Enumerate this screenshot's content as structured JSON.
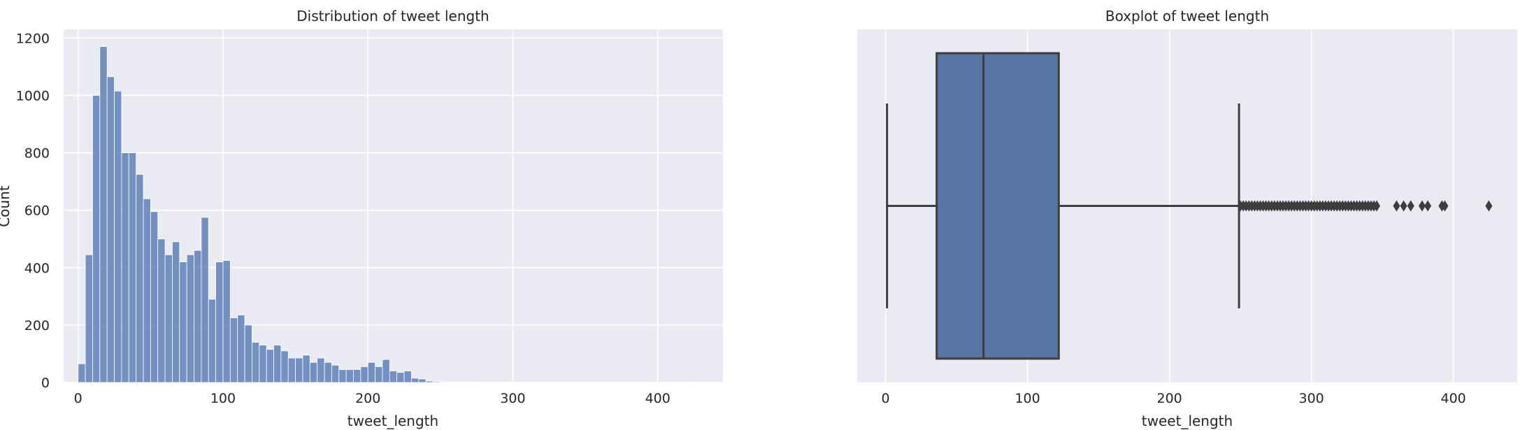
{
  "chart_data": [
    {
      "type": "bar",
      "title": "Distribution of tweet length",
      "xlabel": "tweet_length",
      "ylabel": "Count",
      "xlim": [
        -10,
        445
      ],
      "ylim": [
        0,
        1230
      ],
      "xticks": [
        0,
        100,
        200,
        300,
        400
      ],
      "yticks": [
        0,
        200,
        400,
        600,
        800,
        1000,
        1200
      ],
      "grid": true,
      "bin_width": 5,
      "bin_starts": [
        0,
        5,
        10,
        15,
        20,
        25,
        30,
        35,
        40,
        45,
        50,
        55,
        60,
        65,
        70,
        75,
        80,
        85,
        90,
        95,
        100,
        105,
        110,
        115,
        120,
        125,
        130,
        135,
        140,
        145,
        150,
        155,
        160,
        165,
        170,
        175,
        180,
        185,
        190,
        195,
        200,
        205,
        210,
        215,
        220,
        225,
        230,
        235,
        240,
        245,
        250,
        255,
        260,
        265,
        270,
        275,
        280,
        285,
        290,
        295,
        300,
        305,
        310,
        315,
        320,
        325,
        330,
        335,
        340,
        345,
        350,
        355,
        360,
        365,
        370,
        375,
        380,
        385,
        390,
        395,
        400,
        405,
        410,
        415,
        420
      ],
      "values": [
        65,
        445,
        1000,
        1170,
        1065,
        1015,
        800,
        800,
        725,
        640,
        595,
        500,
        445,
        490,
        420,
        445,
        460,
        575,
        290,
        420,
        425,
        225,
        235,
        200,
        140,
        130,
        115,
        130,
        110,
        85,
        85,
        95,
        70,
        85,
        70,
        60,
        45,
        45,
        45,
        55,
        70,
        55,
        80,
        40,
        35,
        40,
        15,
        12,
        5,
        3,
        2,
        2,
        1,
        1,
        1,
        0,
        0,
        0,
        0,
        0,
        0,
        0,
        0,
        0,
        0,
        0,
        0,
        0,
        0,
        0,
        0,
        0,
        0,
        0,
        0,
        0,
        0,
        0,
        0,
        0,
        0,
        0,
        0,
        0,
        1
      ],
      "color": "#4c72b0"
    },
    {
      "type": "box",
      "title": "Boxplot of tweet length",
      "xlabel": "tweet_length",
      "xlim": [
        -20,
        445
      ],
      "xticks": [
        0,
        100,
        200,
        300,
        400
      ],
      "grid": true,
      "whisker_low": 1,
      "q1": 36,
      "median": 69,
      "q3": 122,
      "whisker_high": 249,
      "outliers": [
        250,
        252,
        254,
        256,
        258,
        260,
        262,
        264,
        266,
        268,
        270,
        272,
        274,
        276,
        278,
        280,
        282,
        284,
        286,
        288,
        290,
        292,
        294,
        296,
        298,
        300,
        302,
        304,
        306,
        308,
        310,
        312,
        314,
        316,
        318,
        320,
        322,
        324,
        326,
        328,
        330,
        332,
        334,
        336,
        338,
        340,
        342,
        344,
        346,
        360,
        365,
        370,
        378,
        382,
        392,
        394,
        425
      ],
      "color": "#4c72b0"
    }
  ]
}
